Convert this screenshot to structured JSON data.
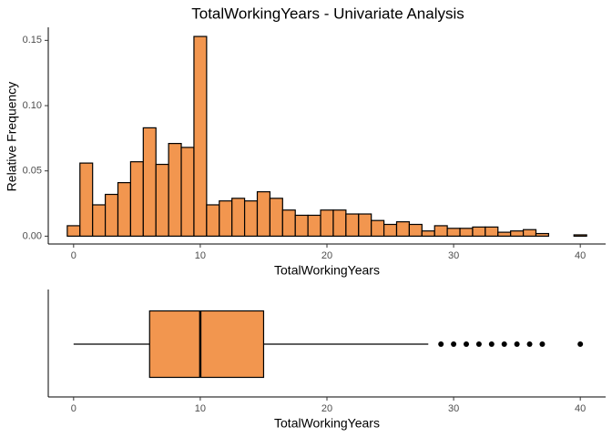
{
  "chart_data": [
    {
      "type": "histogram",
      "title": "TotalWorkingYears - Univariate Analysis",
      "xlabel": "TotalWorkingYears",
      "ylabel": "Relative Frequency",
      "color": "#f2964f",
      "bins": [
        -0.5,
        0.5,
        1.5,
        2.5,
        3.5,
        4.5,
        5.5,
        6.5,
        7.5,
        8.5,
        9.5,
        10.5,
        11.5,
        12.5,
        13.5,
        14.5,
        15.5,
        16.5,
        17.5,
        18.5,
        19.5,
        20.5,
        21.5,
        22.5,
        23.5,
        24.5,
        25.5,
        26.5,
        27.5,
        28.5,
        29.5,
        30.5,
        31.5,
        32.5,
        33.5,
        34.5,
        35.5,
        36.5,
        37.5,
        38.5,
        39.5,
        40.5
      ],
      "counts": [
        0.008,
        0.056,
        0.024,
        0.032,
        0.041,
        0.057,
        0.083,
        0.055,
        0.071,
        0.068,
        0.153,
        0.024,
        0.027,
        0.029,
        0.027,
        0.034,
        0.029,
        0.02,
        0.016,
        0.016,
        0.02,
        0.02,
        0.017,
        0.017,
        0.012,
        0.009,
        0.011,
        0.009,
        0.004,
        0.008,
        0.006,
        0.006,
        0.007,
        0.007,
        0.003,
        0.004,
        0.005,
        0.002,
        0,
        0,
        0.001
      ],
      "xlim": [
        -2,
        42
      ],
      "xticks": [
        0,
        10,
        20,
        30,
        40
      ],
      "ylim": [
        -0.006,
        0.16
      ],
      "yticks": [
        {
          "value": 0,
          "label": "0.00"
        },
        0.05,
        {
          "value": 0.1,
          "label": "0.10"
        },
        0.15
      ]
    },
    {
      "type": "box",
      "xlabel": "TotalWorkingYears",
      "color": "#f2964f",
      "min": 0,
      "q1": 6,
      "median": 10,
      "q3": 15,
      "max": 28,
      "outliers": [
        29,
        30,
        31,
        32,
        33,
        34,
        35,
        36,
        37,
        40
      ],
      "xlim": [
        -2,
        42
      ],
      "xticks": [
        0,
        10,
        20,
        30,
        40
      ]
    }
  ]
}
